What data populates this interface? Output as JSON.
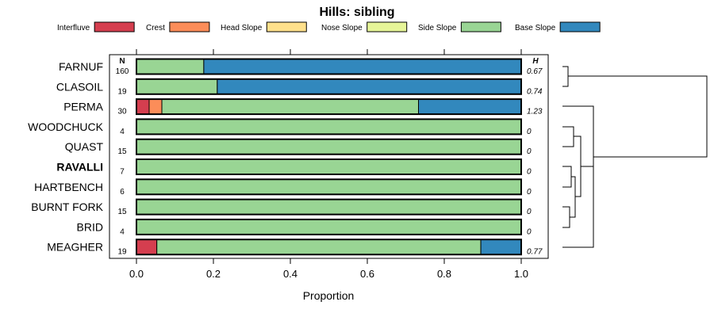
{
  "chart_data": {
    "type": "bar",
    "stacked": true,
    "orientation": "horizontal",
    "title": "Hills: sibling",
    "xlabel": "Proportion",
    "xlim": [
      0,
      1
    ],
    "x_ticks": [
      "0.0",
      "0.2",
      "0.4",
      "0.6",
      "0.8",
      "1.0"
    ],
    "n_header": "N",
    "h_header": "H",
    "legend_placement": "top",
    "series": [
      {
        "name": "Interfluve",
        "color": "#d53e4f"
      },
      {
        "name": "Crest",
        "color": "#fc8d59"
      },
      {
        "name": "Head Slope",
        "color": "#fee08b"
      },
      {
        "name": "Nose Slope",
        "color": "#e6f598"
      },
      {
        "name": "Side Slope",
        "color": "#99d594"
      },
      {
        "name": "Base Slope",
        "color": "#3288bd"
      }
    ],
    "rows": [
      {
        "label": "FARNUF",
        "bold": false,
        "n": "160",
        "h": "0.67",
        "values": [
          0,
          0,
          0,
          0,
          0.175,
          0.825
        ]
      },
      {
        "label": "CLASOIL",
        "bold": false,
        "n": "19",
        "h": "0.74",
        "values": [
          0,
          0,
          0,
          0,
          0.21,
          0.79
        ]
      },
      {
        "label": "PERMA",
        "bold": false,
        "n": "30",
        "h": "1.23",
        "values": [
          0.033,
          0.033,
          0,
          0,
          0.667,
          0.267
        ]
      },
      {
        "label": "WOODCHUCK",
        "bold": false,
        "n": "4",
        "h": "0",
        "values": [
          0,
          0,
          0,
          0,
          1,
          0
        ]
      },
      {
        "label": "QUAST",
        "bold": false,
        "n": "15",
        "h": "0",
        "values": [
          0,
          0,
          0,
          0,
          1,
          0
        ]
      },
      {
        "label": "RAVALLI",
        "bold": true,
        "n": "7",
        "h": "0",
        "values": [
          0,
          0,
          0,
          0,
          1,
          0
        ]
      },
      {
        "label": "HARTBENCH",
        "bold": false,
        "n": "6",
        "h": "0",
        "values": [
          0,
          0,
          0,
          0,
          1,
          0
        ]
      },
      {
        "label": "BURNT FORK",
        "bold": false,
        "n": "15",
        "h": "0",
        "values": [
          0,
          0,
          0,
          0,
          1,
          0
        ]
      },
      {
        "label": "BRID",
        "bold": false,
        "n": "4",
        "h": "0",
        "values": [
          0,
          0,
          0,
          0,
          1,
          0
        ]
      },
      {
        "label": "MEAGHER",
        "bold": false,
        "n": "19",
        "h": "0.77",
        "values": [
          0.053,
          0,
          0,
          0,
          0.842,
          0.105
        ]
      }
    ]
  }
}
